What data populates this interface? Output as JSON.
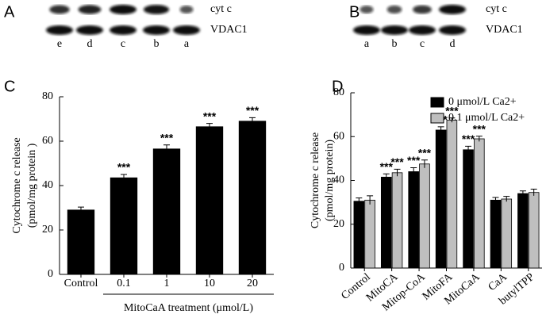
{
  "blots": [
    {
      "panel": "A",
      "rows": [
        "cyt c",
        "VDAC1"
      ],
      "lanes": [
        "e",
        "d",
        "c",
        "b",
        "a"
      ]
    },
    {
      "panel": "B",
      "rows": [
        "cyt c",
        "VDAC1"
      ],
      "lanes": [
        "a",
        "b",
        "c",
        "d"
      ]
    }
  ],
  "chart_data": [
    {
      "panel": "C",
      "type": "bar",
      "ylabel": [
        "Cytochrome c release",
        "(pmol/mg protein )"
      ],
      "xlabel": "MitoCaA treatment (μmol/L)",
      "categories": [
        "Control",
        "0.1",
        "1",
        "10",
        "20"
      ],
      "values": [
        29,
        43.5,
        56.5,
        66.5,
        69
      ],
      "errors": [
        1.3,
        1.5,
        1.8,
        1.5,
        1.6
      ],
      "annotations": [
        null,
        "***",
        "***",
        "***",
        "***"
      ],
      "color": "#000000",
      "ylim": [
        0,
        80
      ],
      "yticks": [
        0,
        20,
        40,
        60,
        80
      ]
    },
    {
      "panel": "D",
      "type": "bar",
      "ylabel": [
        "Cytochrome c release",
        "(pmol/mg protein)"
      ],
      "categories": [
        "Control",
        "MitoCA",
        "Mitop-CoA",
        "MitoFA",
        "MitoCaA",
        "CaA",
        "butylTPP"
      ],
      "series": [
        {
          "name": "0 μmol/L Ca2+",
          "color": "#000000",
          "values": [
            30.5,
            41.5,
            44,
            63,
            54,
            31,
            34
          ],
          "errors": [
            1.5,
            1.5,
            1.8,
            1.5,
            1.6,
            1.2,
            1.2
          ],
          "annotations": [
            null,
            "***",
            "***",
            "***",
            "***",
            null,
            null
          ]
        },
        {
          "name": "0.1 μmol/L Ca2+",
          "color": "#bfbfbf",
          "values": [
            31,
            43.5,
            47.5,
            67.5,
            59,
            31.5,
            34.5
          ],
          "errors": [
            2,
            1.6,
            1.8,
            1,
            1.2,
            1.2,
            1.5
          ],
          "annotations": [
            null,
            "***",
            "***",
            "***",
            "***",
            null,
            null
          ]
        }
      ],
      "legend": "upper right",
      "ylim": [
        0,
        80
      ],
      "yticks": [
        0,
        20,
        40,
        60,
        80
      ]
    }
  ]
}
